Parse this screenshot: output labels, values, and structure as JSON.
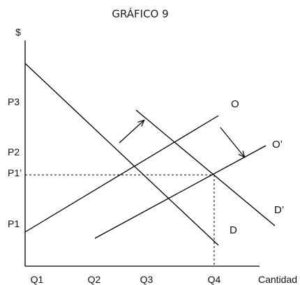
{
  "title": "GRÁFICO 9",
  "axes": {
    "y_label": "$",
    "x_label": "Cantidad"
  },
  "y_ticks": [
    "P3",
    "P2",
    "P1’",
    "P1"
  ],
  "x_ticks": [
    "Q1",
    "Q2",
    "Q3",
    "Q4"
  ],
  "curves": {
    "demand": "D",
    "demand_shifted": "D’",
    "supply": "O",
    "supply_shifted": "O’"
  }
}
